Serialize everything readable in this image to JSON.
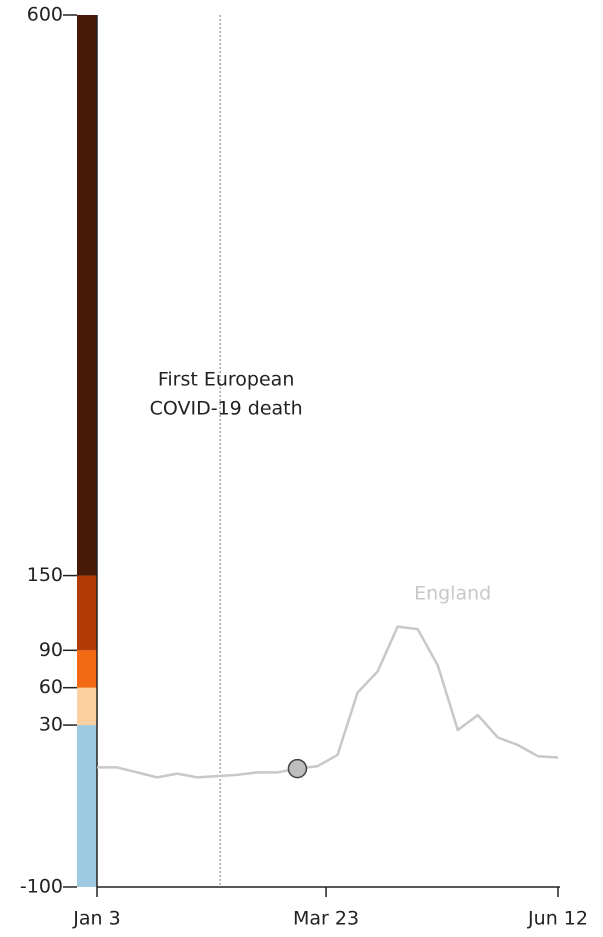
{
  "chart_data": {
    "type": "line",
    "xlim": [
      0,
      161
    ],
    "xticks": [
      {
        "value": 0,
        "label": "Jan 3"
      },
      {
        "value": 80,
        "label": "Mar 23"
      },
      {
        "value": 161,
        "label": "Jun 12"
      }
    ],
    "ylim": [
      -100,
      600
    ],
    "yticks": [
      -100,
      30,
      60,
      90,
      150,
      600
    ],
    "bands": [
      {
        "from": -100,
        "to": 30,
        "color": "#9ecae1"
      },
      {
        "from": 30,
        "to": 60,
        "color": "#fdd0a2"
      },
      {
        "from": 60,
        "to": 90,
        "color": "#f16913"
      },
      {
        "from": 90,
        "to": 150,
        "color": "#b13a07"
      },
      {
        "from": 150,
        "to": 600,
        "color": "#4a1a08"
      }
    ],
    "x": [
      0,
      7,
      14,
      21,
      28,
      35,
      42,
      49,
      56,
      63,
      70,
      77,
      84,
      91,
      98,
      105,
      112,
      119,
      126,
      133,
      140,
      147,
      154,
      161
    ],
    "series": [
      {
        "name": "England",
        "color": "#c8c8c8",
        "values": [
          -4,
          -4,
          -8,
          -12,
          -9,
          -12,
          -11,
          -10,
          -8,
          -8,
          -5,
          -3,
          6,
          56,
          73,
          109,
          107,
          78,
          26,
          38,
          20,
          14,
          5,
          4
        ]
      }
    ],
    "marker": {
      "x": 70,
      "y": -5,
      "color": "#bdbdbd"
    },
    "event": {
      "x": 43,
      "label": [
        "First European",
        "COVID-19 death"
      ]
    }
  }
}
